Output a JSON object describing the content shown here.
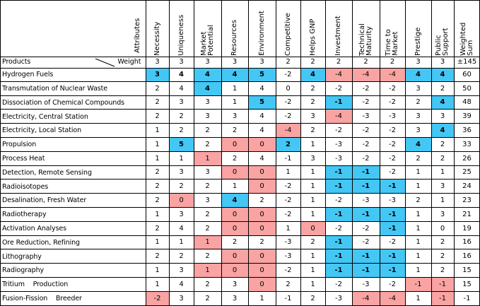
{
  "colors": {
    "blue": "#44c7f4",
    "pink": "#f9a3a3",
    "line": "#000000"
  },
  "header": {
    "attributes_label": "Attributes",
    "columns": [
      [
        "Necessity"
      ],
      [
        "Uniqueness"
      ],
      [
        "Market",
        "Potential"
      ],
      [
        "Resources"
      ],
      [
        "Environment"
      ],
      [
        "Competitive"
      ],
      [
        "Helps GNP"
      ],
      [
        "Investment"
      ],
      [
        "Technical",
        "Maturity"
      ],
      [
        "Time to",
        "Market"
      ],
      [
        "Prestige"
      ],
      [
        "Public",
        "Support"
      ],
      [
        "Weighted",
        "Sum"
      ]
    ]
  },
  "weights_row": {
    "products_label": "Products",
    "weight_label": "Weight",
    "values": [
      "3",
      "3",
      "3",
      "3",
      "3",
      "2",
      "2",
      "2",
      "2",
      "2",
      "3",
      "3",
      "±145"
    ]
  },
  "rows": [
    {
      "label": "Hydrogen Fuels",
      "values": [
        "3",
        "4",
        "4",
        "4",
        "5",
        "-2",
        "4",
        "-4",
        "-4",
        "-4",
        "4",
        "4",
        "60"
      ],
      "fill": [
        "b",
        "",
        "b",
        "b",
        "b",
        "",
        "b",
        "p",
        "p",
        "p",
        "b",
        "b",
        ""
      ],
      "bold": [
        1,
        1,
        1,
        1,
        1,
        0,
        1,
        0,
        0,
        0,
        1,
        1,
        0
      ]
    },
    {
      "label": "Transmutation of Nuclear Waste",
      "values": [
        "2",
        "4",
        "4",
        "1",
        "4",
        "0",
        "2",
        "-2",
        "-2",
        "-2",
        "3",
        "2",
        "50"
      ],
      "fill": [
        "",
        "",
        "b",
        "",
        "",
        "",
        "",
        "",
        "",
        "",
        "",
        ""
      ],
      "bold": [
        0,
        0,
        1,
        0,
        0,
        0,
        0,
        0,
        0,
        0,
        0,
        0,
        0
      ]
    },
    {
      "label": "Dissociation of Chemical Compounds",
      "values": [
        "2",
        "3",
        "3",
        "1",
        "5",
        "-2",
        "2",
        "-1",
        "-2",
        "-2",
        "2",
        "4",
        "48"
      ],
      "fill": [
        "",
        "",
        "",
        "",
        "b",
        "",
        "",
        "b",
        "",
        "",
        "",
        "b",
        ""
      ],
      "bold": [
        0,
        0,
        0,
        0,
        1,
        0,
        0,
        1,
        0,
        0,
        0,
        1,
        0
      ]
    },
    {
      "label": "Electricity, Central Station",
      "values": [
        "2",
        "2",
        "3",
        "3",
        "4",
        "-2",
        "3",
        "-4",
        "-3",
        "-3",
        "3",
        "3",
        "39"
      ],
      "fill": [
        "",
        "",
        "",
        "",
        "",
        "",
        "",
        "p",
        "",
        "",
        "",
        ""
      ],
      "bold": [
        0,
        0,
        0,
        0,
        0,
        0,
        0,
        0,
        0,
        0,
        0,
        0,
        0
      ]
    },
    {
      "label": "Electricity, Local Station",
      "values": [
        "1",
        "2",
        "2",
        "2",
        "4",
        "-4",
        "2",
        "-2",
        "-2",
        "-2",
        "3",
        "4",
        "36"
      ],
      "fill": [
        "",
        "",
        "",
        "",
        "",
        "p",
        "",
        "",
        "",
        "",
        "",
        "b"
      ],
      "bold": [
        0,
        0,
        0,
        0,
        0,
        0,
        0,
        0,
        0,
        0,
        0,
        1,
        0
      ]
    },
    {
      "label": "Propulsion",
      "values": [
        "1",
        "5",
        "2",
        "0",
        "0",
        "2",
        "1",
        "-3",
        "-2",
        "-2",
        "4",
        "2",
        "33"
      ],
      "fill": [
        "",
        "b",
        "",
        "p",
        "p",
        "b",
        "",
        "",
        "",
        "",
        "b",
        ""
      ],
      "bold": [
        0,
        1,
        0,
        0,
        0,
        1,
        0,
        0,
        0,
        0,
        1,
        0,
        0
      ]
    },
    {
      "label": "Process Heat",
      "values": [
        "1",
        "1",
        "1",
        "2",
        "4",
        "-1",
        "3",
        "-3",
        "-2",
        "-2",
        "2",
        "2",
        "26"
      ],
      "fill": [
        "",
        "",
        "p",
        "",
        "",
        "",
        "",
        "",
        "",
        "",
        "",
        ""
      ],
      "bold": [
        0,
        0,
        0,
        0,
        0,
        0,
        0,
        0,
        0,
        0,
        0,
        0,
        0
      ]
    },
    {
      "label": "Detection, Remote Sensing",
      "values": [
        "2",
        "3",
        "3",
        "0",
        "0",
        "1",
        "1",
        "-1",
        "-1",
        "-2",
        "1",
        "1",
        "25"
      ],
      "fill": [
        "",
        "",
        "",
        "p",
        "p",
        "",
        "",
        "b",
        "b",
        "",
        "",
        ""
      ],
      "bold": [
        0,
        0,
        0,
        0,
        0,
        0,
        0,
        1,
        1,
        0,
        0,
        0,
        0
      ]
    },
    {
      "label": "Radioisotopes",
      "values": [
        "2",
        "2",
        "2",
        "1",
        "0",
        "-2",
        "1",
        "-1",
        "-1",
        "-1",
        "1",
        "3",
        "24"
      ],
      "fill": [
        "",
        "",
        "",
        "",
        "p",
        "",
        "",
        "b",
        "b",
        "b",
        "",
        ""
      ],
      "bold": [
        0,
        0,
        0,
        0,
        0,
        0,
        0,
        1,
        1,
        1,
        0,
        0,
        0
      ]
    },
    {
      "label": "Desalination, Fresh Water",
      "values": [
        "2",
        "0",
        "3",
        "4",
        "2",
        "-2",
        "1",
        "-2",
        "-3",
        "-3",
        "2",
        "1",
        "23"
      ],
      "fill": [
        "",
        "p",
        "",
        "b",
        "",
        "",
        "",
        "",
        "",
        "",
        "",
        ""
      ],
      "bold": [
        0,
        0,
        0,
        1,
        0,
        0,
        0,
        0,
        0,
        0,
        0,
        0,
        0
      ]
    },
    {
      "label": "Radiotherapy",
      "values": [
        "1",
        "3",
        "2",
        "0",
        "0",
        "-2",
        "1",
        "-1",
        "-1",
        "-1",
        "1",
        "3",
        "21"
      ],
      "fill": [
        "",
        "",
        "",
        "p",
        "p",
        "",
        "",
        "b",
        "b",
        "b",
        "",
        ""
      ],
      "bold": [
        0,
        0,
        0,
        0,
        0,
        0,
        0,
        1,
        1,
        1,
        0,
        0,
        0
      ]
    },
    {
      "label": "Activation Analyses",
      "values": [
        "2",
        "4",
        "2",
        "0",
        "0",
        "1",
        "0",
        "-2",
        "-2",
        "-1",
        "1",
        "0",
        "19"
      ],
      "fill": [
        "",
        "",
        "",
        "p",
        "p",
        "",
        "p",
        "",
        "",
        "b",
        "",
        ""
      ],
      "bold": [
        0,
        0,
        0,
        0,
        0,
        0,
        0,
        0,
        0,
        1,
        0,
        0,
        0
      ]
    },
    {
      "label": "Ore Reduction, Refining",
      "values": [
        "1",
        "1",
        "1",
        "2",
        "2",
        "-3",
        "2",
        "-1",
        "-2",
        "-2",
        "1",
        "2",
        "16"
      ],
      "fill": [
        "",
        "",
        "p",
        "",
        "",
        "",
        "",
        "b",
        "",
        "",
        "",
        ""
      ],
      "bold": [
        0,
        0,
        0,
        0,
        0,
        0,
        0,
        1,
        0,
        0,
        0,
        0,
        0
      ]
    },
    {
      "label": "Lithography",
      "values": [
        "2",
        "2",
        "2",
        "0",
        "0",
        "-3",
        "1",
        "-1",
        "-1",
        "-1",
        "1",
        "2",
        "16"
      ],
      "fill": [
        "",
        "",
        "",
        "p",
        "p",
        "",
        "",
        "b",
        "b",
        "b",
        "",
        ""
      ],
      "bold": [
        0,
        0,
        0,
        0,
        0,
        0,
        0,
        1,
        1,
        1,
        0,
        0,
        0
      ]
    },
    {
      "label": "Radiography",
      "values": [
        "1",
        "3",
        "1",
        "0",
        "0",
        "-2",
        "1",
        "-1",
        "-1",
        "-1",
        "1",
        "2",
        "15"
      ],
      "fill": [
        "",
        "",
        "p",
        "p",
        "p",
        "",
        "",
        "b",
        "b",
        "b",
        "",
        ""
      ],
      "bold": [
        0,
        0,
        0,
        0,
        0,
        0,
        0,
        1,
        1,
        1,
        0,
        0,
        0
      ]
    },
    {
      "label": "Tritium    Production",
      "values": [
        "1",
        "4",
        "2",
        "3",
        "0",
        "2",
        "1",
        "-2",
        "-3",
        "-2",
        "-1",
        "-1",
        "15"
      ],
      "fill": [
        "",
        "",
        "",
        "",
        "p",
        "",
        "",
        "",
        "",
        "",
        "p",
        "p"
      ],
      "bold": [
        0,
        0,
        0,
        0,
        0,
        0,
        0,
        0,
        0,
        0,
        0,
        0,
        0
      ]
    },
    {
      "label": "Fusion-Fission    Breeder",
      "values": [
        "-2",
        "3",
        "2",
        "3",
        "1",
        "-1",
        "2",
        "-3",
        "-4",
        "-4",
        "1",
        "-1",
        "-1"
      ],
      "fill": [
        "p",
        "",
        "",
        "",
        "",
        "",
        "",
        "",
        "p",
        "p",
        "",
        "p"
      ],
      "bold": [
        0,
        0,
        0,
        0,
        0,
        0,
        0,
        0,
        0,
        0,
        0,
        0,
        0
      ]
    }
  ]
}
